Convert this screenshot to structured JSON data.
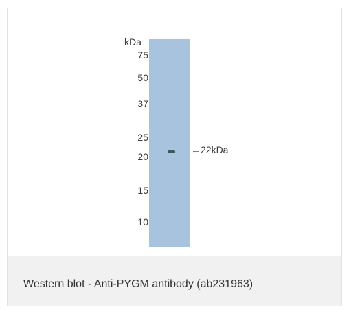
{
  "blot": {
    "unit_label": "kDa",
    "markers": [
      "75",
      "50",
      "37",
      "25",
      "20",
      "15",
      "10"
    ],
    "band_annotation": "←22kDa",
    "lane_color": "#a7c3dd",
    "band_color": "#3f5464"
  },
  "caption": {
    "text": "Western blot - Anti-PYGM antibody (ab231963)"
  }
}
